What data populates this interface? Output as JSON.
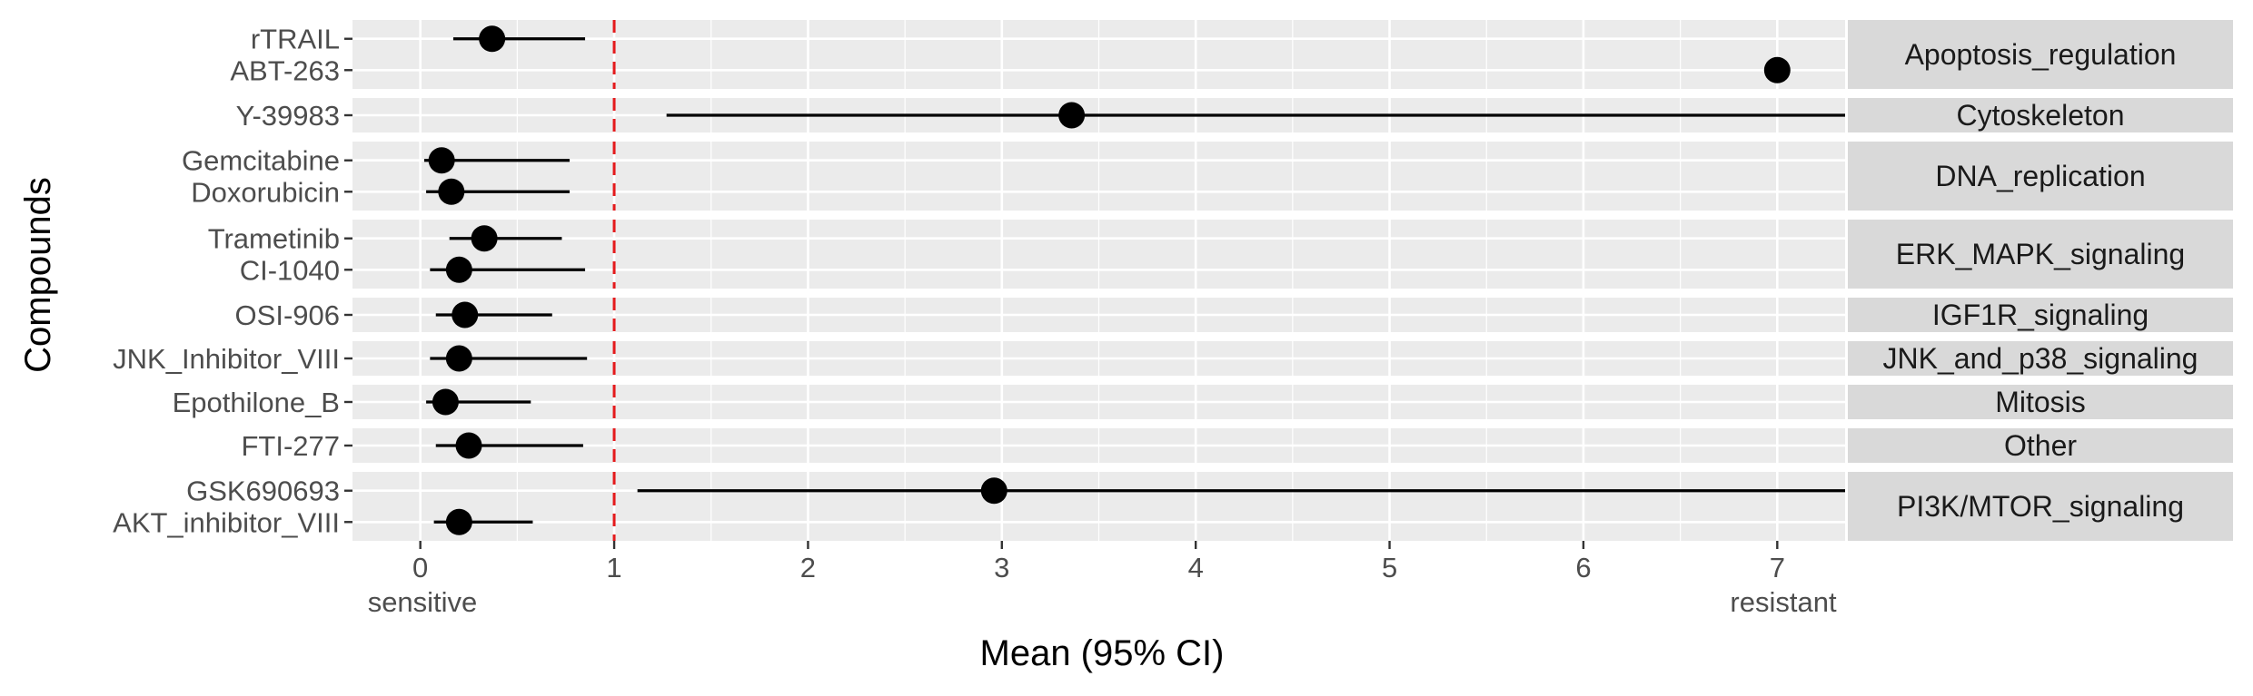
{
  "chart_data": {
    "type": "forest",
    "xlabel": "Mean (95% CI)",
    "ylabel": "Compounds",
    "x_ticks": [
      0,
      1,
      2,
      3,
      4,
      5,
      6,
      7
    ],
    "xlim": [
      -0.35,
      7.35
    ],
    "reference_line": {
      "x": 1,
      "style": "dashed",
      "color": "#e41a1c"
    },
    "x_end_labels": {
      "left": "sensitive",
      "right": "resistant"
    },
    "grid": true,
    "legend": "none",
    "groups": [
      {
        "name": "Apoptosis_regulation",
        "rows": [
          {
            "compound": "rTRAIL",
            "mean": 0.37,
            "lower": 0.17,
            "upper": 0.85
          },
          {
            "compound": "ABT-263",
            "mean": 7.0,
            "lower": 7.0,
            "upper": 7.0
          }
        ]
      },
      {
        "name": "Cytoskeleton",
        "rows": [
          {
            "compound": "Y-39983",
            "mean": 3.36,
            "lower": 1.27,
            "upper": 7.35
          }
        ]
      },
      {
        "name": "DNA_replication",
        "rows": [
          {
            "compound": "Gemcitabine",
            "mean": 0.11,
            "lower": 0.02,
            "upper": 0.77
          },
          {
            "compound": "Doxorubicin",
            "mean": 0.16,
            "lower": 0.03,
            "upper": 0.77
          }
        ]
      },
      {
        "name": "ERK_MAPK_signaling",
        "rows": [
          {
            "compound": "Trametinib",
            "mean": 0.33,
            "lower": 0.15,
            "upper": 0.73
          },
          {
            "compound": "CI-1040",
            "mean": 0.2,
            "lower": 0.05,
            "upper": 0.85
          }
        ]
      },
      {
        "name": "IGF1R_signaling",
        "rows": [
          {
            "compound": "OSI-906",
            "mean": 0.23,
            "lower": 0.08,
            "upper": 0.68
          }
        ]
      },
      {
        "name": "JNK_and_p38_signaling",
        "rows": [
          {
            "compound": "JNK_Inhibitor_VIII",
            "mean": 0.2,
            "lower": 0.05,
            "upper": 0.86
          }
        ]
      },
      {
        "name": "Mitosis",
        "rows": [
          {
            "compound": "Epothilone_B",
            "mean": 0.13,
            "lower": 0.03,
            "upper": 0.57
          }
        ]
      },
      {
        "name": "Other",
        "rows": [
          {
            "compound": "FTI-277",
            "mean": 0.25,
            "lower": 0.08,
            "upper": 0.84
          }
        ]
      },
      {
        "name": "PI3K/MTOR_signaling",
        "rows": [
          {
            "compound": "GSK690693",
            "mean": 2.96,
            "lower": 1.12,
            "upper": 7.35
          },
          {
            "compound": "AKT_inhibitor_VIII",
            "mean": 0.2,
            "lower": 0.07,
            "upper": 0.58
          }
        ]
      }
    ]
  },
  "colors": {
    "panel_bg": "#ebebeb",
    "strip_bg": "#d9d9d9",
    "grid": "#ffffff",
    "point": "#000000",
    "reference_line": "#e41a1c"
  }
}
